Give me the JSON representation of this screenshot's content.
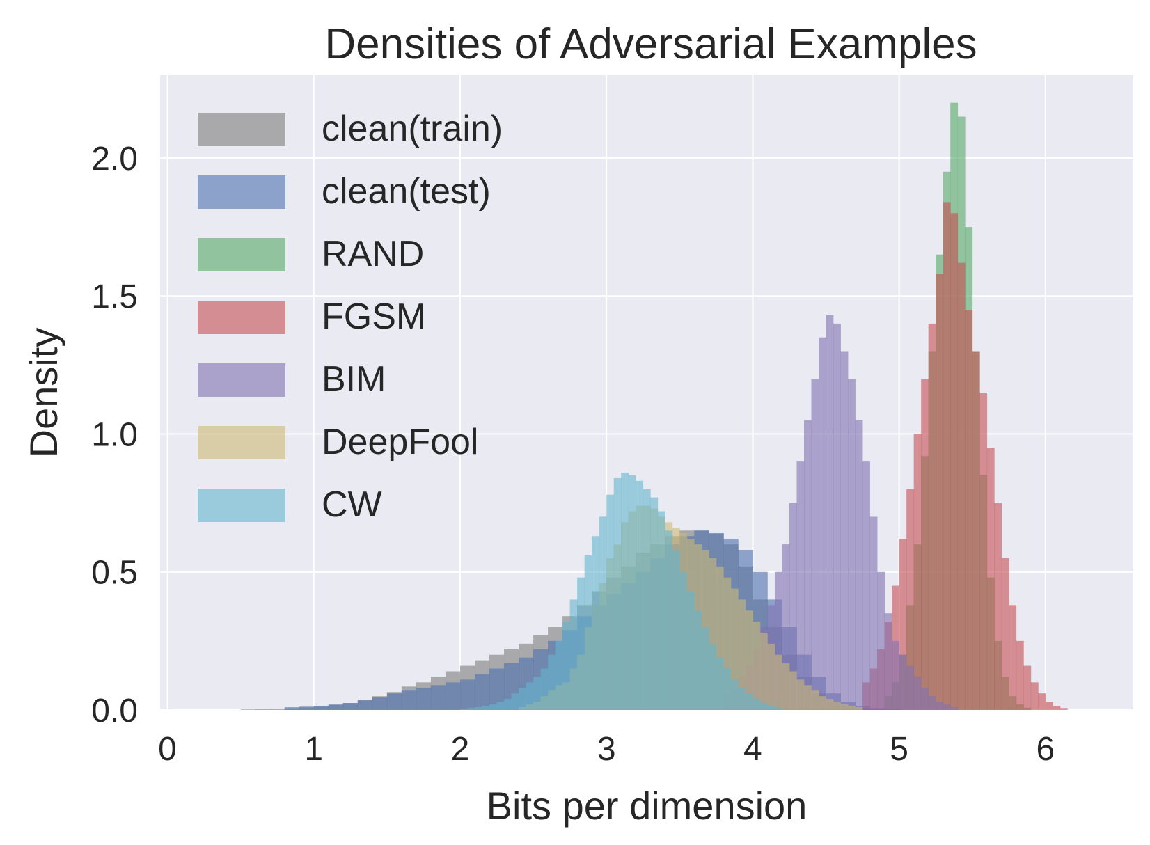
{
  "chart_data": {
    "type": "histogram",
    "title": "Densities of Adversarial Examples",
    "xlabel": "Bits per dimension",
    "ylabel": "Density",
    "xlim": [
      -0.05,
      6.6
    ],
    "ylim": [
      0,
      2.3
    ],
    "xticks": [
      0,
      1,
      2,
      3,
      4,
      5,
      6
    ],
    "yticks": [
      0.0,
      0.5,
      1.0,
      1.5,
      2.0
    ],
    "xtick_labels": [
      "0",
      "1",
      "2",
      "3",
      "4",
      "5",
      "6"
    ],
    "ytick_labels": [
      "0.0",
      "0.5",
      "1.0",
      "1.5",
      "2.0"
    ],
    "grid": true,
    "legend_position": "top-left",
    "series": [
      {
        "name": "clean(train)",
        "color": "#999999",
        "opacity": 0.8,
        "start": 0.5,
        "bin_width": 0.1,
        "values": [
          0.002,
          0.003,
          0.004,
          0.006,
          0.009,
          0.012,
          0.018,
          0.025,
          0.035,
          0.05,
          0.065,
          0.085,
          0.1,
          0.12,
          0.14,
          0.16,
          0.18,
          0.2,
          0.22,
          0.24,
          0.27,
          0.3,
          0.34,
          0.38,
          0.43,
          0.48,
          0.52,
          0.57,
          0.6,
          0.63,
          0.65,
          0.65,
          0.64,
          0.6,
          0.52,
          0.4,
          0.3,
          0.2,
          0.12,
          0.06,
          0.03,
          0.015,
          0.007,
          0.003
        ]
      },
      {
        "name": "clean(test)",
        "color": "#4c72b0",
        "opacity": 0.6,
        "start": 0.8,
        "bin_width": 0.1,
        "values": [
          0.01,
          0.012,
          0.015,
          0.02,
          0.025,
          0.035,
          0.045,
          0.06,
          0.07,
          0.08,
          0.09,
          0.1,
          0.11,
          0.13,
          0.15,
          0.17,
          0.19,
          0.22,
          0.25,
          0.29,
          0.34,
          0.38,
          0.42,
          0.46,
          0.5,
          0.55,
          0.6,
          0.63,
          0.65,
          0.64,
          0.62,
          0.58,
          0.5,
          0.4,
          0.3,
          0.2,
          0.12,
          0.06,
          0.03,
          0.015,
          0.007,
          0.003
        ]
      },
      {
        "name": "RAND",
        "color": "#55a868",
        "opacity": 0.6,
        "start": 4.9,
        "bin_width": 0.05,
        "values": [
          0.05,
          0.1,
          0.2,
          0.38,
          0.6,
          0.92,
          1.3,
          1.65,
          1.95,
          2.2,
          2.15,
          1.75,
          1.3,
          0.85,
          0.48,
          0.25,
          0.12,
          0.05,
          0.02,
          0.008
        ]
      },
      {
        "name": "FGSM",
        "color": "#c44e52",
        "opacity": 0.6,
        "start": 4.75,
        "bin_width": 0.05,
        "values": [
          0.1,
          0.15,
          0.22,
          0.32,
          0.45,
          0.62,
          0.8,
          1.0,
          1.2,
          1.4,
          1.58,
          1.84,
          1.8,
          1.62,
          1.45,
          1.3,
          1.15,
          0.95,
          0.75,
          0.55,
          0.38,
          0.25,
          0.16,
          0.1,
          0.06,
          0.03,
          0.015,
          0.007
        ]
      },
      {
        "name": "BIM",
        "color": "#8172b2",
        "opacity": 0.6,
        "start": 3.8,
        "bin_width": 0.05,
        "values": [
          0.06,
          0.08,
          0.12,
          0.16,
          0.22,
          0.3,
          0.38,
          0.5,
          0.6,
          0.75,
          0.9,
          1.05,
          1.2,
          1.35,
          1.43,
          1.4,
          1.3,
          1.2,
          1.05,
          0.9,
          0.7,
          0.5,
          0.35,
          0.25,
          0.2,
          0.16,
          0.12,
          0.08,
          0.05,
          0.03,
          0.02,
          0.01
        ]
      },
      {
        "name": "DeepFool",
        "color": "#ccb974",
        "opacity": 0.6,
        "start": 2.4,
        "bin_width": 0.05,
        "values": [
          0.01,
          0.02,
          0.03,
          0.05,
          0.07,
          0.09,
          0.1,
          0.15,
          0.2,
          0.3,
          0.38,
          0.46,
          0.55,
          0.6,
          0.68,
          0.72,
          0.74,
          0.74,
          0.73,
          0.7,
          0.68,
          0.66,
          0.64,
          0.62,
          0.6,
          0.58,
          0.55,
          0.52,
          0.48,
          0.44,
          0.4,
          0.36,
          0.32,
          0.28,
          0.24,
          0.2,
          0.17,
          0.14,
          0.11,
          0.09,
          0.07,
          0.05,
          0.04,
          0.03,
          0.02,
          0.015,
          0.01
        ]
      },
      {
        "name": "CW",
        "color": "#64b5cd",
        "opacity": 0.6,
        "start": 2.0,
        "bin_width": 0.05,
        "values": [
          0.005,
          0.008,
          0.01,
          0.015,
          0.02,
          0.03,
          0.04,
          0.06,
          0.08,
          0.1,
          0.12,
          0.15,
          0.2,
          0.25,
          0.32,
          0.4,
          0.48,
          0.56,
          0.63,
          0.7,
          0.78,
          0.84,
          0.86,
          0.85,
          0.83,
          0.8,
          0.77,
          0.72,
          0.65,
          0.58,
          0.5,
          0.43,
          0.36,
          0.3,
          0.24,
          0.19,
          0.15,
          0.11,
          0.08,
          0.06,
          0.04,
          0.025,
          0.015,
          0.008
        ]
      }
    ]
  }
}
